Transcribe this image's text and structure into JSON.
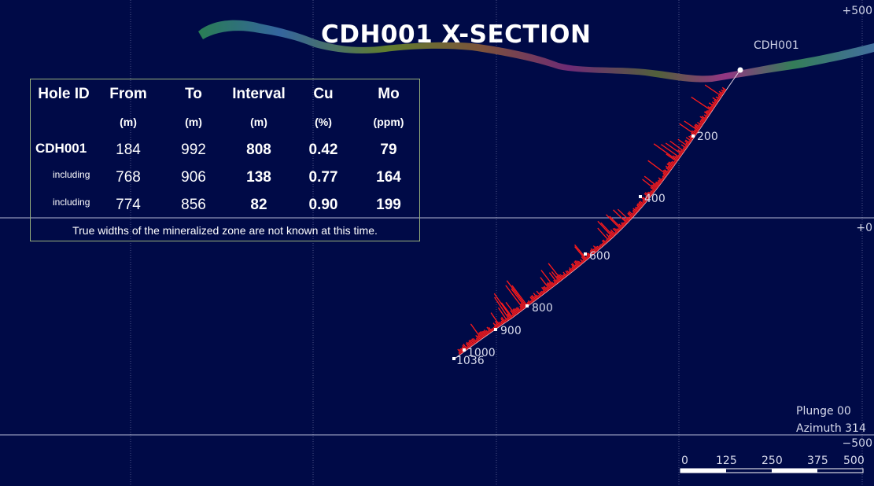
{
  "title": "CDH001 X-SECTION",
  "hole_label": "CDH001",
  "elevation_labels": {
    "top": "+500",
    "mid": "+0",
    "bottom": "−500"
  },
  "depth_markers": [
    "200",
    "400",
    "600",
    "800",
    "900",
    "1000",
    "1036"
  ],
  "orientation": {
    "plunge": "Plunge 00",
    "azimuth": "Azimuth 314"
  },
  "scale_bar": {
    "labels": [
      "0",
      "125",
      "250",
      "375",
      "500"
    ]
  },
  "colors": {
    "background": "#000a47",
    "assay_bars": "#ff1a1a",
    "grid": "#8a8fb8",
    "table_border": "#9ab27c"
  },
  "table": {
    "headers": [
      "Hole ID",
      "From",
      "To",
      "Interval",
      "Cu",
      "Mo"
    ],
    "units": [
      "",
      "(m)",
      "(m)",
      "(m)",
      "(%)",
      "(ppm)"
    ],
    "rows": [
      {
        "label": "CDH001",
        "from": "184",
        "to": "992",
        "interval": "808",
        "cu": "0.42",
        "mo": "79"
      },
      {
        "label": "including",
        "from": "768",
        "to": "906",
        "interval": "138",
        "cu": "0.77",
        "mo": "164"
      },
      {
        "label": "including",
        "from": "774",
        "to": "856",
        "interval": "82",
        "cu": "0.90",
        "mo": "199"
      }
    ],
    "note": "True widths of the mineralized zone are not known at this time."
  }
}
